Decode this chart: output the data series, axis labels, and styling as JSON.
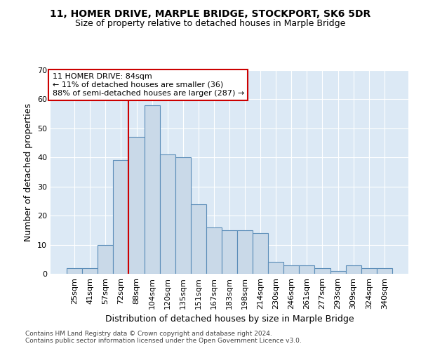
{
  "title_line1": "11, HOMER DRIVE, MARPLE BRIDGE, STOCKPORT, SK6 5DR",
  "title_line2": "Size of property relative to detached houses in Marple Bridge",
  "xlabel": "Distribution of detached houses by size in Marple Bridge",
  "ylabel": "Number of detached properties",
  "bin_labels": [
    "25sqm",
    "41sqm",
    "57sqm",
    "72sqm",
    "88sqm",
    "104sqm",
    "120sqm",
    "135sqm",
    "151sqm",
    "167sqm",
    "183sqm",
    "198sqm",
    "214sqm",
    "230sqm",
    "246sqm",
    "261sqm",
    "277sqm",
    "293sqm",
    "309sqm",
    "324sqm",
    "340sqm"
  ],
  "bar_values": [
    2,
    2,
    10,
    39,
    47,
    58,
    41,
    40,
    24,
    16,
    15,
    15,
    14,
    4,
    3,
    3,
    2,
    1,
    3,
    2,
    2
  ],
  "bar_color": "#c9d9e8",
  "bar_edge_color": "#5b8db8",
  "bar_edge_width": 0.8,
  "vline_x_index": 4,
  "vline_color": "#cc0000",
  "annotation_text": "11 HOMER DRIVE: 84sqm\n← 11% of detached houses are smaller (36)\n88% of semi-detached houses are larger (287) →",
  "annotation_box_color": "#ffffff",
  "annotation_box_edge_color": "#cc0000",
  "ylim": [
    0,
    70
  ],
  "yticks": [
    0,
    10,
    20,
    30,
    40,
    50,
    60,
    70
  ],
  "plot_bg_color": "#dce9f5",
  "footer_line1": "Contains HM Land Registry data © Crown copyright and database right 2024.",
  "footer_line2": "Contains public sector information licensed under the Open Government Licence v3.0.",
  "title_fontsize": 10,
  "subtitle_fontsize": 9,
  "axis_label_fontsize": 9,
  "tick_fontsize": 8,
  "annotation_fontsize": 8,
  "footer_fontsize": 6.5
}
